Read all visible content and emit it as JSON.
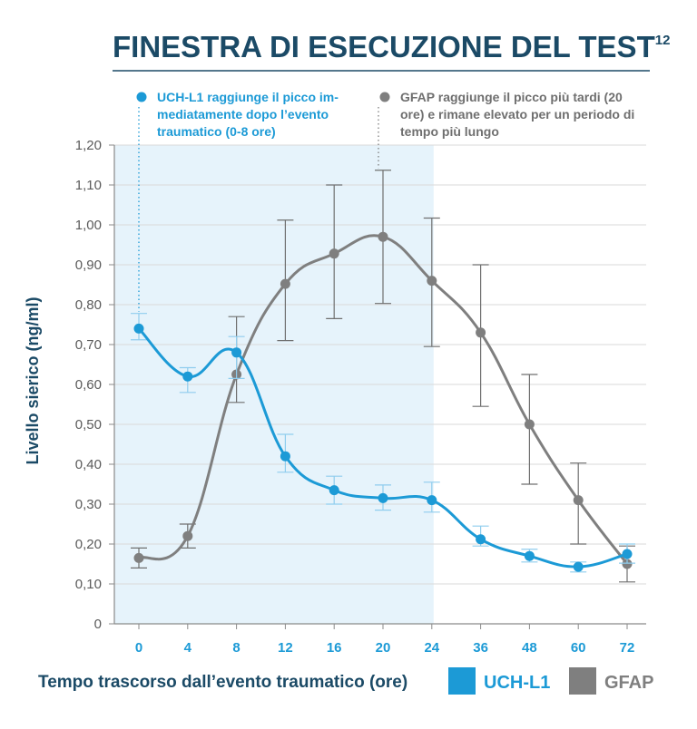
{
  "colors": {
    "title": "#1b4a66",
    "uchl1": "#1c9ad6",
    "gfap": "#7f7f7f",
    "shade": "#e6f3fb",
    "axis": "#8a8a8a"
  },
  "chart_data": {
    "type": "line",
    "title": "FINESTRA DI ESECUZIONE DEL TEST",
    "title_superscript": "12",
    "ylabel": "Livello sierico (ng/ml)",
    "xlabel": "Tempo trascorso dall’evento traumatico (ore)",
    "categories": [
      "0",
      "4",
      "8",
      "12",
      "16",
      "20",
      "24",
      "36",
      "48",
      "60",
      "72"
    ],
    "y_ticks": [
      "0",
      "0,10",
      "0,20",
      "0,30",
      "0,40",
      "0,50",
      "0,60",
      "0,70",
      "0,80",
      "0,90",
      "1,00",
      "1,10",
      "1,20"
    ],
    "ylim": [
      0,
      1.2
    ],
    "grid": true,
    "shaded_region": {
      "from": "0",
      "to": "24"
    },
    "legend_placement": "bottom-right",
    "series": [
      {
        "name": "UCH-L1",
        "values": [
          0.74,
          0.62,
          0.68,
          0.42,
          0.335,
          0.315,
          0.31,
          0.212,
          0.17,
          0.143,
          0.175
        ],
        "error_low": [
          0.712,
          0.58,
          0.615,
          0.38,
          0.3,
          0.285,
          0.28,
          0.195,
          0.155,
          0.13,
          0.152
        ],
        "error_high": [
          0.778,
          0.642,
          0.72,
          0.475,
          0.37,
          0.348,
          0.355,
          0.245,
          0.187,
          0.155,
          0.2
        ]
      },
      {
        "name": "GFAP",
        "values": [
          0.165,
          0.22,
          0.625,
          0.852,
          0.928,
          0.97,
          0.86,
          0.73,
          0.5,
          0.31,
          0.15
        ],
        "error_low": [
          0.14,
          0.19,
          0.555,
          0.71,
          0.765,
          0.803,
          0.695,
          0.545,
          0.35,
          0.2,
          0.105
        ],
        "error_high": [
          0.19,
          0.25,
          0.77,
          1.012,
          1.1,
          1.137,
          1.017,
          0.9,
          0.625,
          0.403,
          0.195
        ]
      }
    ],
    "annotations": [
      {
        "series": "UCH-L1",
        "lines": [
          "UCH-L1 raggiunge il picco im-",
          "mediatamente dopo l’evento",
          "traumatico (0-8 ore)"
        ]
      },
      {
        "series": "GFAP",
        "lines": [
          "GFAP raggiunge il picco più tardi (20",
          "ore) e rimane elevato per un periodo di",
          "tempo più lungo"
        ]
      }
    ]
  }
}
